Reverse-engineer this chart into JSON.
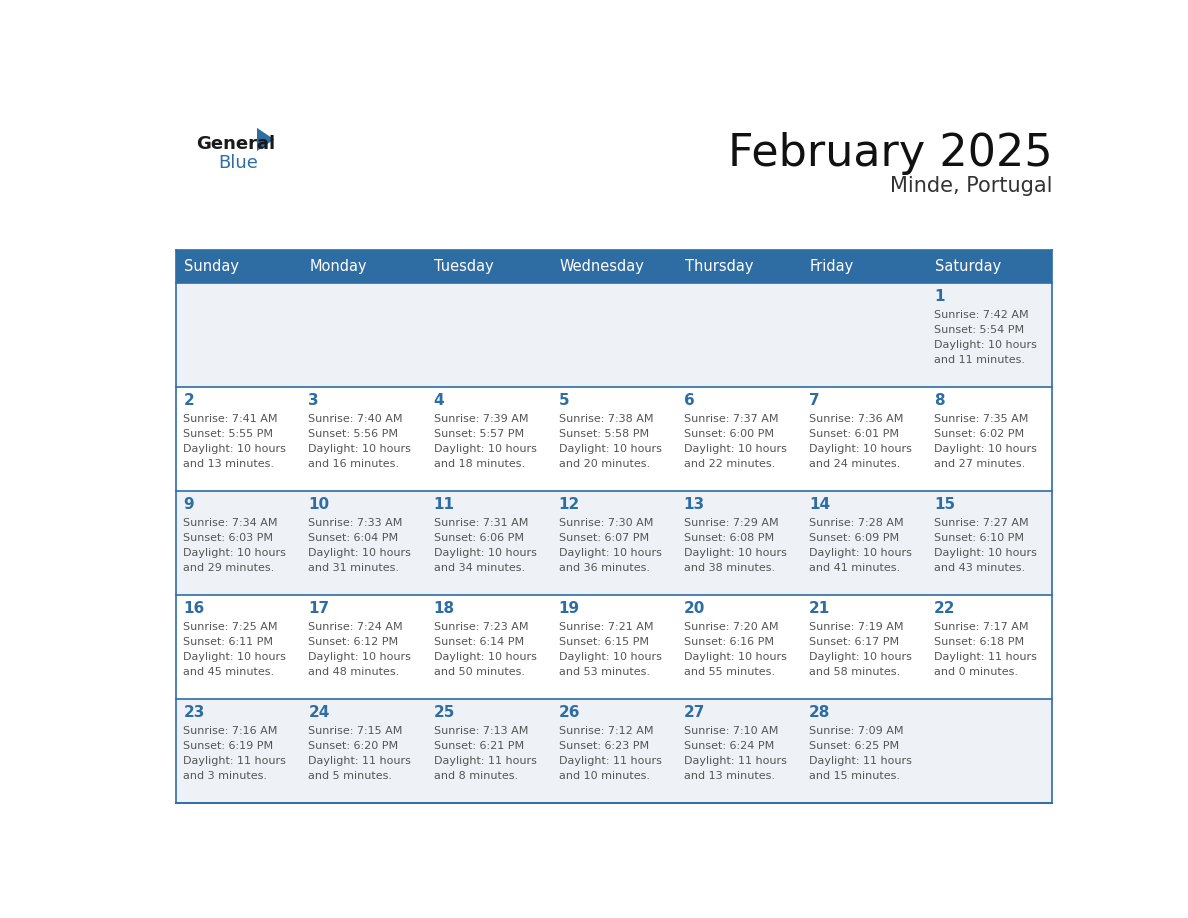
{
  "title": "February 2025",
  "subtitle": "Minde, Portugal",
  "days_of_week": [
    "Sunday",
    "Monday",
    "Tuesday",
    "Wednesday",
    "Thursday",
    "Friday",
    "Saturday"
  ],
  "header_bg_color": "#2e6da4",
  "header_text_color": "#ffffff",
  "cell_bg_even": "#eef2f7",
  "cell_bg_odd": "#ffffff",
  "day_number_color": "#2e6da4",
  "text_color": "#555555",
  "line_color": "#2e6da4",
  "background_color": "#ffffff",
  "calendar_data": [
    [
      null,
      null,
      null,
      null,
      null,
      null,
      {
        "day": 1,
        "sunrise": "7:42 AM",
        "sunset": "5:54 PM",
        "daylight": "10 hours and 11 minutes."
      }
    ],
    [
      {
        "day": 2,
        "sunrise": "7:41 AM",
        "sunset": "5:55 PM",
        "daylight": "10 hours and 13 minutes."
      },
      {
        "day": 3,
        "sunrise": "7:40 AM",
        "sunset": "5:56 PM",
        "daylight": "10 hours and 16 minutes."
      },
      {
        "day": 4,
        "sunrise": "7:39 AM",
        "sunset": "5:57 PM",
        "daylight": "10 hours and 18 minutes."
      },
      {
        "day": 5,
        "sunrise": "7:38 AM",
        "sunset": "5:58 PM",
        "daylight": "10 hours and 20 minutes."
      },
      {
        "day": 6,
        "sunrise": "7:37 AM",
        "sunset": "6:00 PM",
        "daylight": "10 hours and 22 minutes."
      },
      {
        "day": 7,
        "sunrise": "7:36 AM",
        "sunset": "6:01 PM",
        "daylight": "10 hours and 24 minutes."
      },
      {
        "day": 8,
        "sunrise": "7:35 AM",
        "sunset": "6:02 PM",
        "daylight": "10 hours and 27 minutes."
      }
    ],
    [
      {
        "day": 9,
        "sunrise": "7:34 AM",
        "sunset": "6:03 PM",
        "daylight": "10 hours and 29 minutes."
      },
      {
        "day": 10,
        "sunrise": "7:33 AM",
        "sunset": "6:04 PM",
        "daylight": "10 hours and 31 minutes."
      },
      {
        "day": 11,
        "sunrise": "7:31 AM",
        "sunset": "6:06 PM",
        "daylight": "10 hours and 34 minutes."
      },
      {
        "day": 12,
        "sunrise": "7:30 AM",
        "sunset": "6:07 PM",
        "daylight": "10 hours and 36 minutes."
      },
      {
        "day": 13,
        "sunrise": "7:29 AM",
        "sunset": "6:08 PM",
        "daylight": "10 hours and 38 minutes."
      },
      {
        "day": 14,
        "sunrise": "7:28 AM",
        "sunset": "6:09 PM",
        "daylight": "10 hours and 41 minutes."
      },
      {
        "day": 15,
        "sunrise": "7:27 AM",
        "sunset": "6:10 PM",
        "daylight": "10 hours and 43 minutes."
      }
    ],
    [
      {
        "day": 16,
        "sunrise": "7:25 AM",
        "sunset": "6:11 PM",
        "daylight": "10 hours and 45 minutes."
      },
      {
        "day": 17,
        "sunrise": "7:24 AM",
        "sunset": "6:12 PM",
        "daylight": "10 hours and 48 minutes."
      },
      {
        "day": 18,
        "sunrise": "7:23 AM",
        "sunset": "6:14 PM",
        "daylight": "10 hours and 50 minutes."
      },
      {
        "day": 19,
        "sunrise": "7:21 AM",
        "sunset": "6:15 PM",
        "daylight": "10 hours and 53 minutes."
      },
      {
        "day": 20,
        "sunrise": "7:20 AM",
        "sunset": "6:16 PM",
        "daylight": "10 hours and 55 minutes."
      },
      {
        "day": 21,
        "sunrise": "7:19 AM",
        "sunset": "6:17 PM",
        "daylight": "10 hours and 58 minutes."
      },
      {
        "day": 22,
        "sunrise": "7:17 AM",
        "sunset": "6:18 PM",
        "daylight": "11 hours and 0 minutes."
      }
    ],
    [
      {
        "day": 23,
        "sunrise": "7:16 AM",
        "sunset": "6:19 PM",
        "daylight": "11 hours and 3 minutes."
      },
      {
        "day": 24,
        "sunrise": "7:15 AM",
        "sunset": "6:20 PM",
        "daylight": "11 hours and 5 minutes."
      },
      {
        "day": 25,
        "sunrise": "7:13 AM",
        "sunset": "6:21 PM",
        "daylight": "11 hours and 8 minutes."
      },
      {
        "day": 26,
        "sunrise": "7:12 AM",
        "sunset": "6:23 PM",
        "daylight": "11 hours and 10 minutes."
      },
      {
        "day": 27,
        "sunrise": "7:10 AM",
        "sunset": "6:24 PM",
        "daylight": "11 hours and 13 minutes."
      },
      {
        "day": 28,
        "sunrise": "7:09 AM",
        "sunset": "6:25 PM",
        "daylight": "11 hours and 15 minutes."
      },
      null
    ]
  ]
}
